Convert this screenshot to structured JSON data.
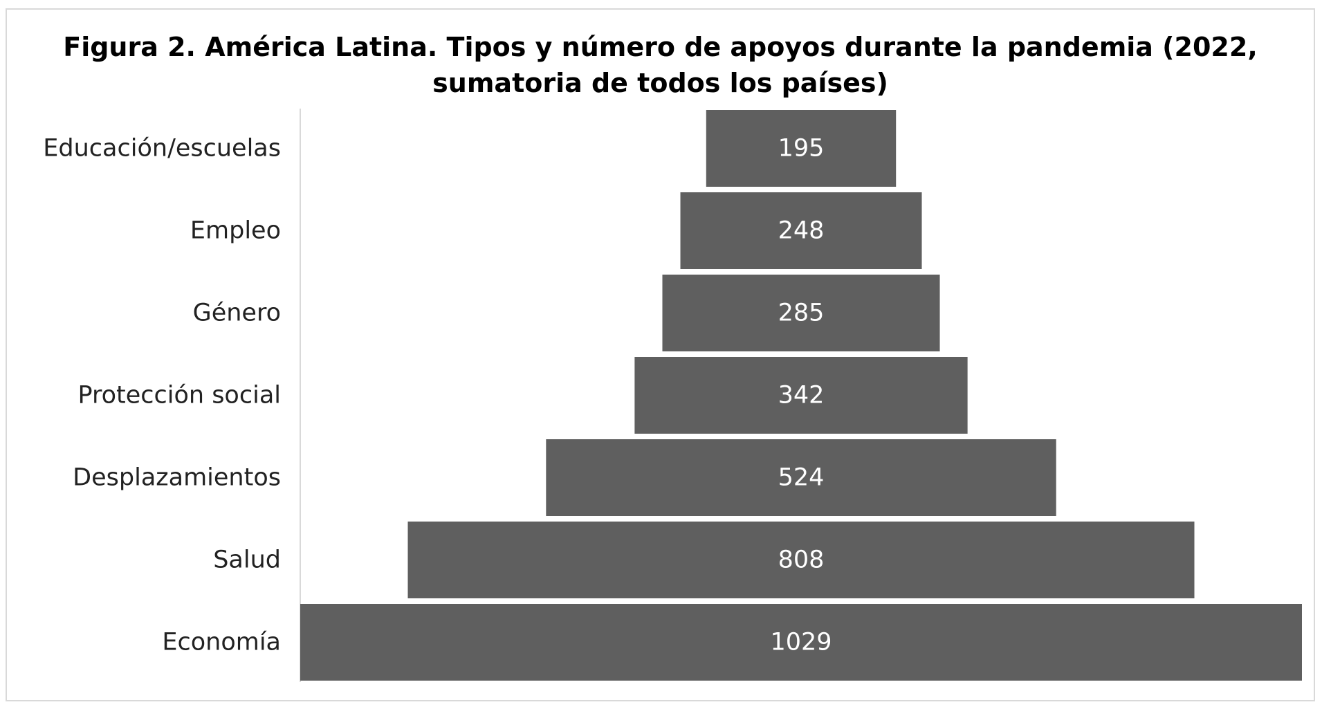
{
  "chart_data": {
    "type": "bar",
    "orientation": "horizontal",
    "style": "centered-funnel",
    "title": "Figura 2. América Latina. Tipos y número de apoyos durante la pandemia (2022, sumatoria de todos los países)",
    "categories": [
      "Educación/escuelas",
      "Empleo",
      "Género",
      "Protección social",
      "Desplazamientos",
      "Salud",
      "Economía"
    ],
    "values": [
      195,
      248,
      285,
      342,
      524,
      808,
      1029
    ],
    "xlim": [
      0,
      1029
    ],
    "grid": false,
    "legend": "none",
    "bar_color": "#5f5f5f",
    "label_color": "#ffffff"
  }
}
